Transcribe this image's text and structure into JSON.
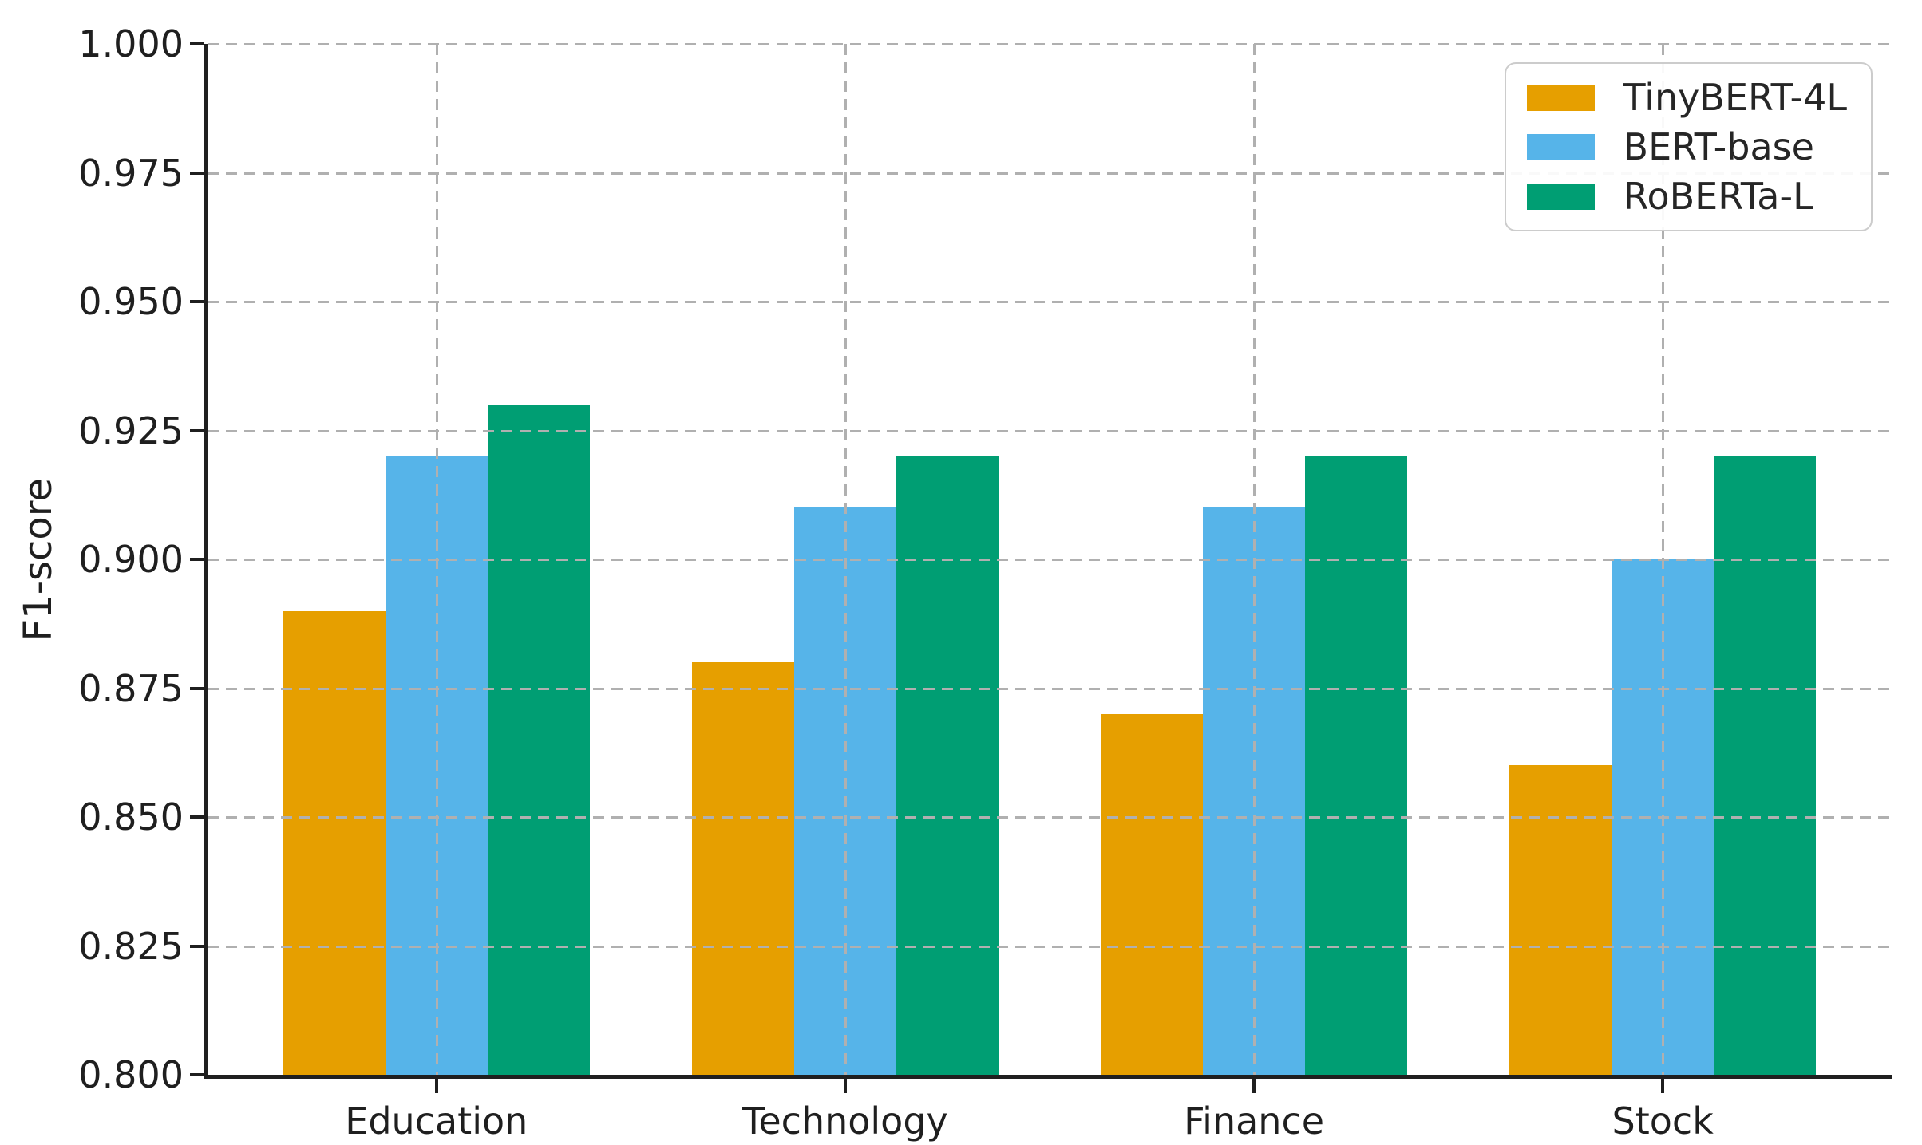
{
  "chart_data": {
    "type": "bar",
    "title": "",
    "xlabel": "",
    "ylabel": "F1-score",
    "categories": [
      "Education",
      "Technology",
      "Finance",
      "Stock"
    ],
    "series": [
      {
        "name": "TinyBERT-4L",
        "color": "#E69F00",
        "values": [
          0.89,
          0.88,
          0.87,
          0.86
        ]
      },
      {
        "name": "BERT-base",
        "color": "#56B4E9",
        "values": [
          0.92,
          0.91,
          0.91,
          0.9
        ]
      },
      {
        "name": "RoBERTa-L",
        "color": "#009E73",
        "values": [
          0.93,
          0.92,
          0.92,
          0.92
        ]
      }
    ],
    "ylim": [
      0.8,
      1.0
    ],
    "ytick_labels": [
      "1.000",
      "0.975",
      "0.950",
      "0.925",
      "0.900",
      "0.875",
      "0.850",
      "0.825",
      "0.800"
    ],
    "grid": "dashed, both axes, drawn above bars",
    "legend_position": "upper right",
    "colors": {
      "spine": "#1f1f1f",
      "grid": "#b0b0b0",
      "text": "#1f1f1f",
      "legend_border": "#cccccc",
      "background": "#ffffff"
    }
  }
}
